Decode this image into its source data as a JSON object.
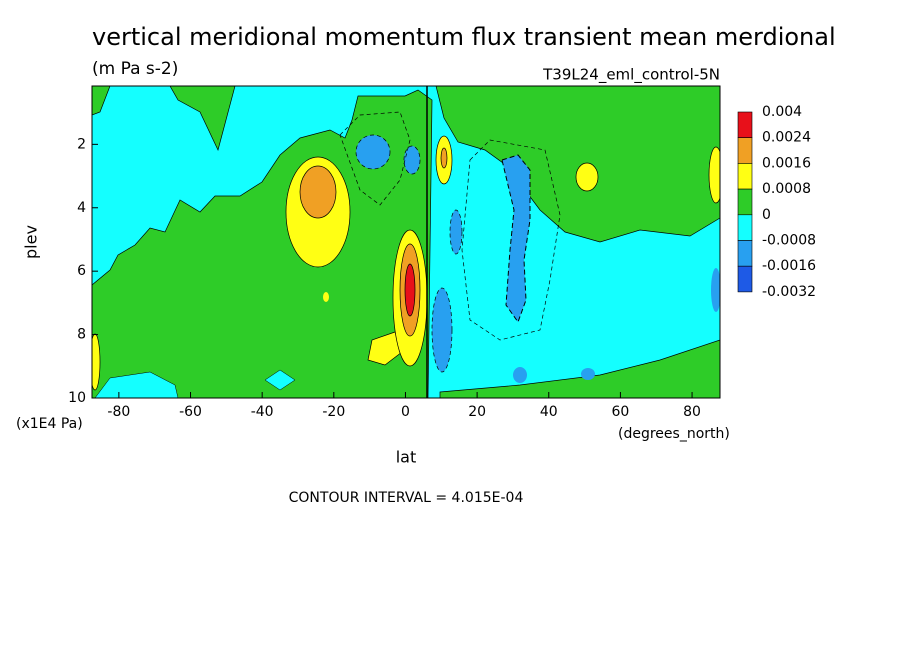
{
  "chart_data": {
    "type": "contour",
    "title": "vertical meridional momentum flux transient mean merdional",
    "subtitle": "(m Pa s-2)",
    "run_label": "T39L24_eml_control-5N",
    "x_label": "lat",
    "x_units": "(degrees_north)",
    "y_label": "plev",
    "y_units": "(x1E4 Pa)",
    "xlim": [
      -87.5,
      87.8
    ],
    "xticks": [
      -80,
      -60,
      -40,
      -20,
      0,
      20,
      40,
      60,
      80
    ],
    "ylim": [
      10,
      0.16
    ],
    "yticks": [
      2,
      4,
      6,
      8,
      10
    ],
    "colorbar": {
      "levels": [
        0.004,
        0.0024,
        0.0016,
        0.0008,
        0,
        -0.0008,
        -0.0016,
        -0.0032
      ],
      "colors": [
        "#e8101a",
        "#f0a024",
        "#ffff14",
        "#2ecc28",
        "#14ffff",
        "#28a0f0",
        "#1e5ae6"
      ]
    },
    "footnote": "CONTOUR INTERVAL = 4.015E-04"
  }
}
